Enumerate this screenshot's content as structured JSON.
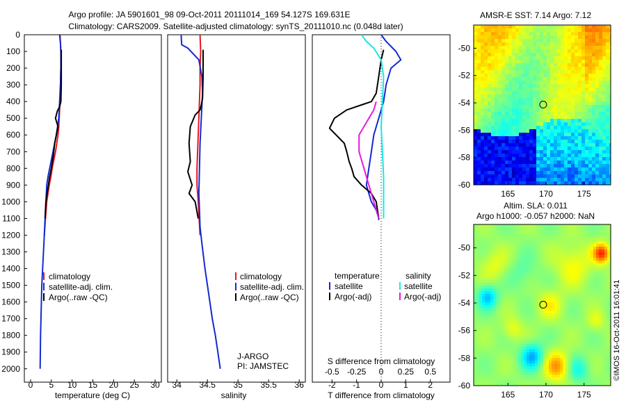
{
  "header": {
    "line1": "Argo profile: JA 5901601_98 09-Oct-2011 20111014_169 54.127S 169.631E",
    "line2": "Climatology: CARS2009. Satellite-adjusted climatology: synTS_20111010.nc (0.048d later)"
  },
  "colors": {
    "climatology": "#e8141e",
    "satellite": "#1428d2",
    "argo": "#000000",
    "sal_satellite": "#19e6e6",
    "sal_argo": "#e619e6"
  },
  "chart_data": [
    {
      "id": "temperature",
      "type": "line",
      "xlabel": "temperature (deg C)",
      "ylabel": "",
      "xlim": [
        -1.5,
        31.5
      ],
      "ylim": [
        0,
        2080
      ],
      "y_inverted": true,
      "xticks": [
        0,
        5,
        10,
        15,
        20,
        25,
        30
      ],
      "yticks": [
        0,
        100,
        200,
        300,
        400,
        500,
        600,
        700,
        800,
        900,
        1000,
        1100,
        1200,
        1300,
        1400,
        1500,
        1600,
        1700,
        1800,
        1900,
        2000
      ],
      "legend": [
        "climatology",
        "satellite-adj. clim.",
        "Argo(..raw -QC)"
      ],
      "series": [
        {
          "name": "climatology",
          "x": [
            7.1,
            7.2,
            7.3,
            7.3,
            7.2,
            7.1,
            7.0,
            6.9,
            6.8,
            6.6,
            6.3,
            6.0,
            5.6,
            5.2,
            4.9,
            4.5,
            4.2,
            3.9,
            3.6,
            3.3
          ],
          "y": [
            0,
            50,
            100,
            200,
            300,
            400,
            450,
            500,
            550,
            600,
            650,
            700,
            750,
            800,
            850,
            900,
            950,
            1000,
            1100,
            1200
          ]
        },
        {
          "name": "satellite-adj. clim.",
          "x": [
            7.0,
            7.2,
            7.3,
            7.3,
            7.2,
            7.0,
            6.8,
            6.5,
            6.2,
            5.8,
            5.4,
            5.0,
            4.6,
            4.2,
            3.9,
            3.7,
            3.5,
            3.3,
            3.1,
            2.9,
            2.7,
            2.6,
            2.5,
            2.4,
            2.3
          ],
          "y": [
            0,
            50,
            100,
            200,
            300,
            400,
            500,
            550,
            600,
            650,
            700,
            750,
            800,
            850,
            900,
            1000,
            1100,
            1200,
            1300,
            1400,
            1500,
            1600,
            1700,
            1800,
            2000
          ]
        },
        {
          "name": "Argo(..raw -QC)",
          "x": [
            7.4,
            7.4,
            7.4,
            7.3,
            7.0,
            6.4,
            6.0,
            6.6,
            5.8,
            5.5,
            5.0,
            4.6,
            4.3,
            4.0,
            3.7,
            3.5
          ],
          "y": [
            90,
            150,
            300,
            400,
            430,
            460,
            500,
            550,
            650,
            720,
            800,
            850,
            900,
            950,
            1000,
            1100
          ]
        }
      ]
    },
    {
      "id": "salinity",
      "type": "line",
      "xlabel": "salinity",
      "ylabel": "",
      "xlim": [
        33.85,
        36.1
      ],
      "ylim": [
        0,
        2080
      ],
      "y_inverted": true,
      "xticks": [
        34,
        34.5,
        35,
        35.5,
        36
      ],
      "legend": [
        "climatology",
        "satellite-adj. clim.",
        "Argo(..raw -QC)"
      ],
      "annotation": [
        "J-ARGO",
        "PI: JAMSTEC"
      ],
      "series": [
        {
          "name": "climatology",
          "x": [
            34.38,
            34.39,
            34.38,
            34.38,
            34.36,
            34.34,
            34.33,
            34.33,
            34.35,
            34.38
          ],
          "y": [
            0,
            100,
            200,
            300,
            500,
            700,
            800,
            900,
            1000,
            1200
          ]
        },
        {
          "name": "satellite-adj. clim.",
          "x": [
            34.07,
            34.08,
            34.18,
            34.36,
            34.41,
            34.42,
            34.4,
            34.38,
            34.37,
            34.36,
            34.37,
            34.38,
            34.41,
            34.46,
            34.52,
            34.58,
            34.63,
            34.67,
            34.71
          ],
          "y": [
            0,
            60,
            80,
            150,
            250,
            350,
            500,
            650,
            800,
            950,
            1050,
            1150,
            1250,
            1400,
            1550,
            1700,
            1800,
            1900,
            2000
          ]
        },
        {
          "name": "Argo(..raw -QC)",
          "x": [
            34.43,
            34.43,
            34.42,
            34.4,
            34.38,
            34.3,
            34.22,
            34.2,
            34.22,
            34.18,
            34.25,
            34.2,
            34.3,
            34.35
          ],
          "y": [
            90,
            250,
            380,
            420,
            450,
            480,
            550,
            650,
            760,
            820,
            900,
            950,
            1000,
            1100
          ]
        }
      ]
    },
    {
      "id": "differences",
      "type": "line",
      "xlabel": "T difference from climatology",
      "xlabel_top": "S difference from climatology",
      "xlim": [
        -2.8,
        2.8
      ],
      "ylim": [
        0,
        2080
      ],
      "y_inverted": true,
      "xticks": [
        -2,
        -1,
        0,
        1,
        2
      ],
      "xticks_top": [
        -0.5,
        -0.25,
        0,
        0.25,
        0.5
      ],
      "legend_headers": [
        "temperature",
        "salinity"
      ],
      "legend": [
        "satellite",
        "Argo(-adj)",
        "satellite",
        "Argo(-adj)"
      ],
      "series": [
        {
          "name": "satellite",
          "x": [
            0,
            0.2,
            0.6,
            0.8,
            0.4,
            0.2,
            0.1,
            -0.1,
            -0.3,
            -0.4,
            -0.5,
            -0.6,
            -0.5,
            -0.4,
            -0.2,
            -0.1,
            -0.1
          ],
          "y": [
            0,
            40,
            100,
            150,
            200,
            300,
            400,
            500,
            600,
            700,
            800,
            900,
            950,
            1000,
            1050,
            1100,
            1110
          ]
        },
        {
          "name": "Argo(-adj)",
          "x": [
            0.1,
            0.0,
            -0.1,
            -0.2,
            -0.4,
            -0.8,
            -1.4,
            -1.9,
            -2.1,
            -1.7,
            -1.5,
            -1.4,
            -1.3,
            -1.2,
            -1.1,
            -0.8,
            -0.4,
            -0.2,
            -0.1
          ],
          "y": [
            90,
            150,
            250,
            350,
            400,
            420,
            450,
            500,
            560,
            620,
            650,
            700,
            760,
            800,
            850,
            900,
            950,
            1000,
            1100
          ]
        },
        {
          "name": "satellite",
          "x": [
            -0.8,
            -0.6,
            -0.3,
            0.0,
            0.1,
            0.05,
            0.0,
            0.05,
            0.1,
            0.1,
            0.1,
            0.1
          ],
          "y": [
            0,
            40,
            80,
            150,
            250,
            400,
            550,
            700,
            850,
            950,
            1050,
            1100
          ]
        },
        {
          "name": "Argo(-adj)",
          "x": [
            -0.2,
            -0.3,
            -0.5,
            -0.9,
            -0.9,
            -0.7,
            -0.5,
            -0.3,
            -0.1
          ],
          "y": [
            400,
            450,
            500,
            600,
            700,
            800,
            900,
            1000,
            1100
          ]
        }
      ]
    },
    {
      "id": "sst-map",
      "type": "heatmap",
      "title": "AMSR-E SST: 7.14 Argo: 7.12",
      "xlim": [
        160.5,
        178.5
      ],
      "ylim": [
        -60,
        -48.3
      ],
      "xticks": [
        165,
        170,
        175
      ],
      "yticks": [
        -50,
        -52,
        -54,
        -56,
        -58,
        -60
      ],
      "argo_position": [
        169.631,
        -54.127
      ]
    },
    {
      "id": "sla-map",
      "type": "heatmap",
      "title": "Altim. SLA: 0.011",
      "subtitle": "Argo h1000: -0.057 h2000: NaN",
      "xlim": [
        160.5,
        178.5
      ],
      "ylim": [
        -60,
        -48.3
      ],
      "xticks": [
        165,
        170,
        175
      ],
      "yticks": [
        -50,
        -52,
        -54,
        -56,
        -58,
        -60
      ],
      "argo_position": [
        169.631,
        -54.127
      ]
    }
  ],
  "credit": "©IMOS 16-Oct-2011 16:01:41"
}
